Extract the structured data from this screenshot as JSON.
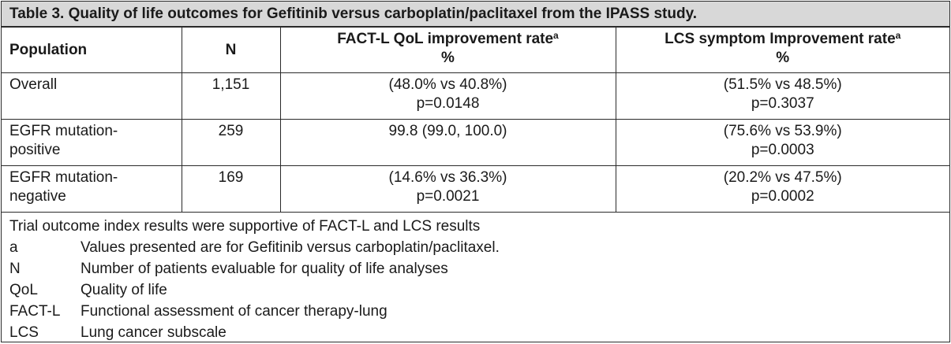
{
  "title": "Table 3. Quality of life outcomes for Gefitinib versus carboplatin/paclitaxel from the IPASS study.",
  "headers": {
    "population": "Population",
    "n": "N",
    "fact_l": "FACT-L QoL improvement rate",
    "fact_l_sup": "a",
    "fact_l_unit": "%",
    "lcs": "LCS symptom Improvement rate",
    "lcs_sup": "a",
    "lcs_unit": "%"
  },
  "rows": [
    {
      "population": [
        "Overall"
      ],
      "n": "1,151",
      "fact_l": [
        "(48.0% vs 40.8%)",
        "p=0.0148"
      ],
      "lcs": [
        "(51.5% vs 48.5%)",
        "p=0.3037"
      ]
    },
    {
      "population": [
        "EGFR mutation-",
        "positive"
      ],
      "n": "259",
      "fact_l": [
        "99.8 (99.0, 100.0)"
      ],
      "lcs": [
        "(75.6% vs 53.9%)",
        "p=0.0003"
      ]
    },
    {
      "population": [
        "EGFR mutation-",
        "negative"
      ],
      "n": "169",
      "fact_l": [
        "(14.6% vs 36.3%)",
        "p=0.0021"
      ],
      "lcs": [
        "(20.2% vs 47.5%)",
        "p=0.0002"
      ]
    }
  ],
  "footnote": "Trial outcome index results were supportive of FACT-L and LCS results",
  "definitions": [
    {
      "term": "a",
      "def": "Values presented are for Gefitinib versus carboplatin/paclitaxel."
    },
    {
      "term": "N",
      "def": "Number of patients evaluable for quality of life analyses"
    },
    {
      "term": "QoL",
      "def": "Quality of life"
    },
    {
      "term": "FACT-L",
      "def": "Functional assessment of cancer therapy-lung"
    },
    {
      "term": "LCS",
      "def": "Lung cancer subscale"
    }
  ]
}
